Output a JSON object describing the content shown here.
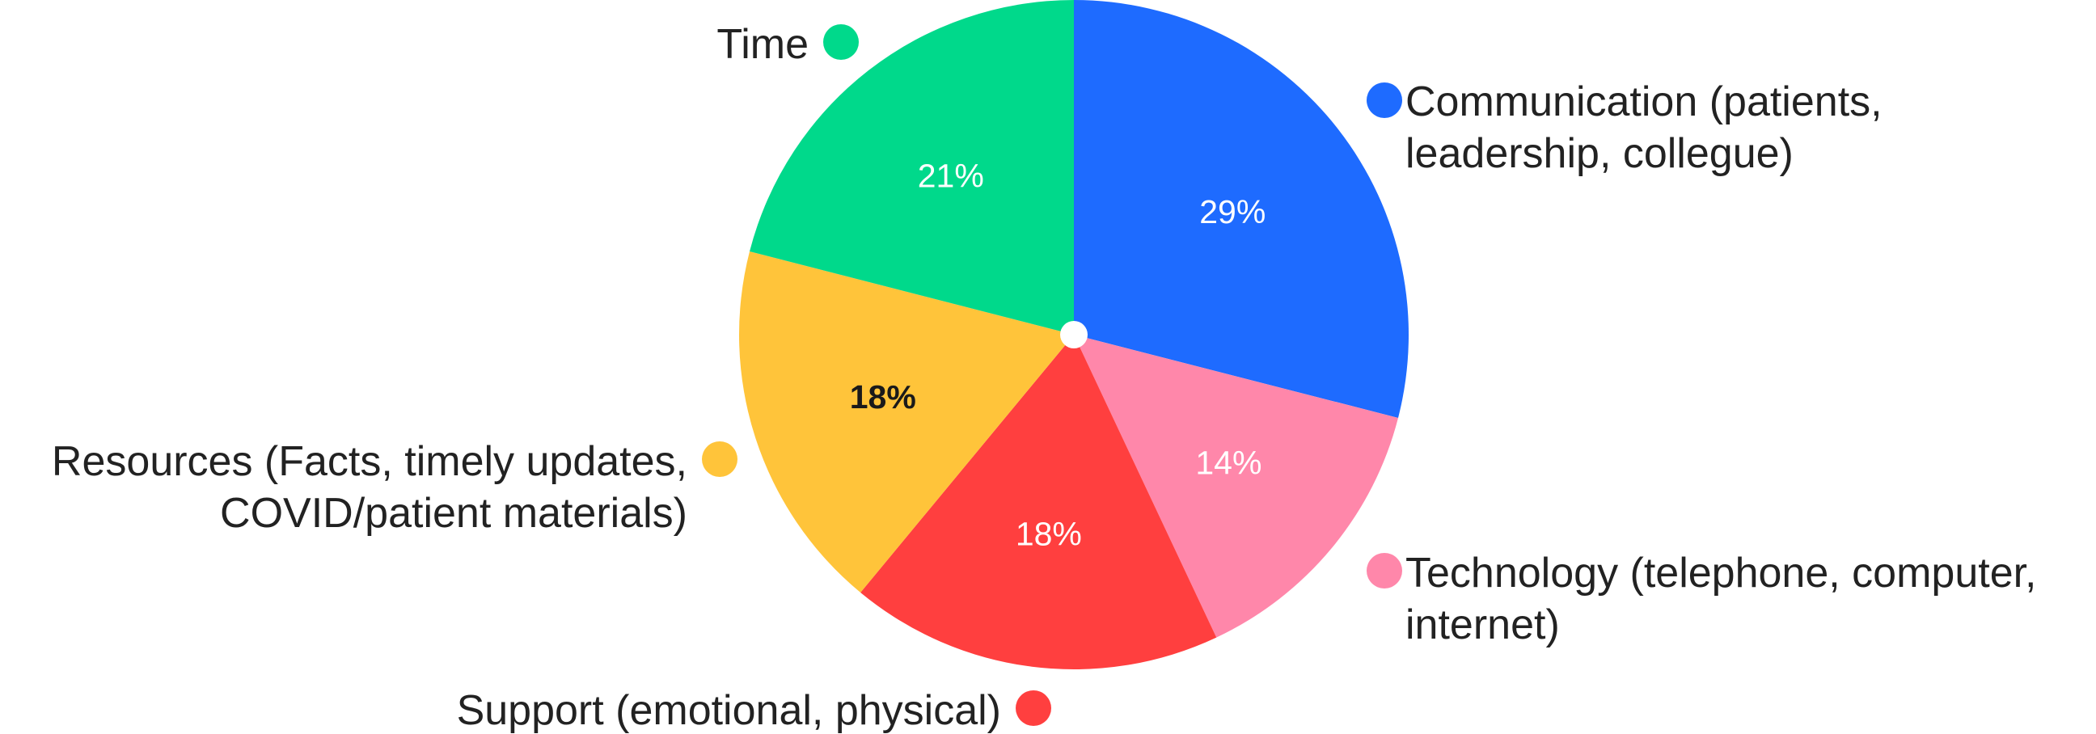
{
  "chart_data": {
    "type": "pie",
    "slices": [
      {
        "label_lines": [
          "Communication (patients,",
          "leadership, collegue)"
        ],
        "value": 29,
        "value_label": "29%",
        "color": "#1e6bff",
        "label_color": "#ffffff",
        "legend_side": "right"
      },
      {
        "label_lines": [
          "Technology (telephone, computer,",
          "internet)"
        ],
        "value": 14,
        "value_label": "14%",
        "color": "#ff87aa",
        "label_color": "#ffffff",
        "legend_side": "right"
      },
      {
        "label_lines": [
          "Support (emotional, physical)"
        ],
        "value": 18,
        "value_label": "18%",
        "color": "#ff3f3f",
        "label_color": "#ffffff",
        "legend_side": "left"
      },
      {
        "label_lines": [
          "Resources (Facts, timely updates,",
          "COVID/patient materials)"
        ],
        "value": 18,
        "value_label": "18%",
        "color": "#ffc43a",
        "label_color": "#1a1a1a",
        "legend_side": "left"
      },
      {
        "label_lines": [
          "Time"
        ],
        "value": 21,
        "value_label": "21%",
        "color": "#00d98b",
        "label_color": "#ffffff",
        "legend_side": "left"
      }
    ]
  }
}
